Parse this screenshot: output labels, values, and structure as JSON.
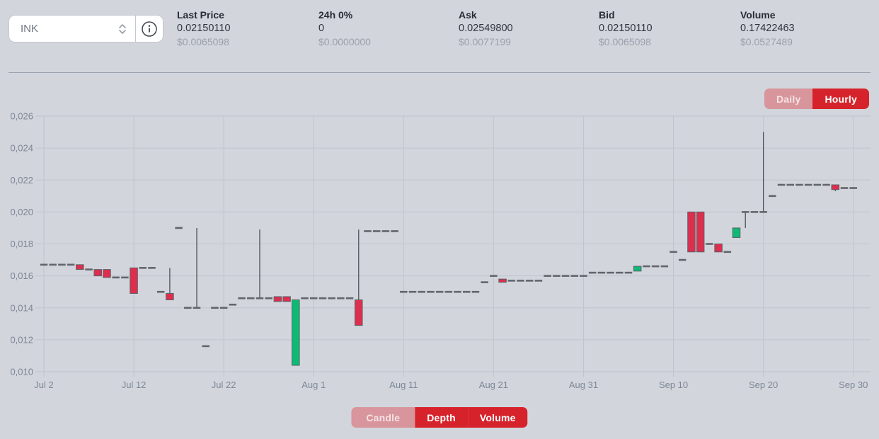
{
  "header": {
    "pair": "INK",
    "pair_select_icon": "chevron-up-down-icon",
    "info_icon": "info-circle-icon",
    "stats": [
      {
        "label": "Last Price",
        "value": "0.02150110",
        "usd": "$0.0065098"
      },
      {
        "label": "24h 0%",
        "value": "0",
        "usd": "$0.0000000"
      },
      {
        "label": "Ask",
        "value": "0.02549800",
        "usd": "$0.0077199"
      },
      {
        "label": "Bid",
        "value": "0.02150110",
        "usd": "$0.0065098"
      },
      {
        "label": "Volume",
        "value": "0.17422463",
        "usd": "$0.0527489"
      }
    ]
  },
  "chart_controls": {
    "interval": [
      {
        "label": "Daily",
        "highlighted": false
      },
      {
        "label": "Hourly",
        "highlighted": true
      }
    ],
    "view": [
      {
        "label": "Candle",
        "highlighted": false
      },
      {
        "label": "Depth",
        "highlighted": true
      },
      {
        "label": "Volume",
        "highlighted": true
      }
    ]
  },
  "chart_data": {
    "type": "candlestick",
    "interval": "daily",
    "y_range": [
      0.01,
      0.026
    ],
    "grid": true,
    "y_ticks": [
      {
        "label": "0,026",
        "value": 0.026
      },
      {
        "label": "0,024",
        "value": 0.024
      },
      {
        "label": "0,022",
        "value": 0.022
      },
      {
        "label": "0,020",
        "value": 0.02
      },
      {
        "label": "0,018",
        "value": 0.018
      },
      {
        "label": "0,016",
        "value": 0.016
      },
      {
        "label": "0,014",
        "value": 0.014
      },
      {
        "label": "0,012",
        "value": 0.012
      },
      {
        "label": "0,010",
        "value": 0.01
      }
    ],
    "x_ticks": [
      {
        "label": "Jul 2",
        "index": 0
      },
      {
        "label": "Jul 12",
        "index": 10
      },
      {
        "label": "Jul 22",
        "index": 20
      },
      {
        "label": "Aug 1",
        "index": 30
      },
      {
        "label": "Aug 11",
        "index": 40
      },
      {
        "label": "Aug 21",
        "index": 50
      },
      {
        "label": "Aug 31",
        "index": 60
      },
      {
        "label": "Sep 10",
        "index": 70
      },
      {
        "label": "Sep 20",
        "index": 80
      },
      {
        "label": "Sep 30",
        "index": 90
      }
    ],
    "colors": {
      "up": "#0dba74",
      "down": "#dd2e4e",
      "body_border": "#5c6168",
      "dash": "#62666c",
      "wick": "#4d525a",
      "grid": "#c0c4cc",
      "axis_text": "#7d8795"
    },
    "candles_format": [
      "open",
      "high",
      "low",
      "close"
    ],
    "candles": [
      [
        0.0167,
        0.0167,
        0.0167,
        0.0167
      ],
      [
        0.0167,
        0.0167,
        0.0167,
        0.0167
      ],
      [
        0.0167,
        0.0167,
        0.0167,
        0.0167
      ],
      [
        0.0167,
        0.0167,
        0.0167,
        0.0167
      ],
      [
        0.0167,
        0.0167,
        0.0164,
        0.0164
      ],
      [
        0.0164,
        0.0164,
        0.0164,
        0.0164
      ],
      [
        0.0164,
        0.0164,
        0.016,
        0.016
      ],
      [
        0.0164,
        0.0164,
        0.0159,
        0.0159
      ],
      [
        0.0159,
        0.0159,
        0.0159,
        0.0159
      ],
      [
        0.0159,
        0.0159,
        0.0159,
        0.0159
      ],
      [
        0.0165,
        0.0165,
        0.0149,
        0.0149
      ],
      [
        0.0165,
        0.0165,
        0.0165,
        0.0165
      ],
      [
        0.0165,
        0.0165,
        0.0165,
        0.0165
      ],
      [
        0.015,
        0.015,
        0.015,
        0.015
      ],
      [
        0.0149,
        0.0165,
        0.0145,
        0.0145
      ],
      [
        0.019,
        0.019,
        0.019,
        0.019
      ],
      [
        0.014,
        0.014,
        0.014,
        0.014
      ],
      [
        0.014,
        0.019,
        0.014,
        0.014
      ],
      [
        0.0116,
        0.0116,
        0.0116,
        0.0116
      ],
      [
        0.014,
        0.014,
        0.014,
        0.014
      ],
      [
        0.014,
        0.014,
        0.014,
        0.014
      ],
      [
        0.0142,
        0.0142,
        0.0142,
        0.0142
      ],
      [
        0.0146,
        0.0146,
        0.0146,
        0.0146
      ],
      [
        0.0146,
        0.0146,
        0.0146,
        0.0146
      ],
      [
        0.0146,
        0.0189,
        0.0146,
        0.0146
      ],
      [
        0.0146,
        0.0146,
        0.0146,
        0.0146
      ],
      [
        0.0147,
        0.0147,
        0.0144,
        0.0144
      ],
      [
        0.0147,
        0.0147,
        0.0144,
        0.0144
      ],
      [
        0.0104,
        0.0145,
        0.0104,
        0.0145
      ],
      [
        0.0146,
        0.0146,
        0.0146,
        0.0146
      ],
      [
        0.0146,
        0.0146,
        0.0146,
        0.0146
      ],
      [
        0.0146,
        0.0146,
        0.0146,
        0.0146
      ],
      [
        0.0146,
        0.0146,
        0.0146,
        0.0146
      ],
      [
        0.0146,
        0.0146,
        0.0146,
        0.0146
      ],
      [
        0.0146,
        0.0146,
        0.0146,
        0.0146
      ],
      [
        0.0145,
        0.0189,
        0.0129,
        0.0129
      ],
      [
        0.0188,
        0.0188,
        0.0188,
        0.0188
      ],
      [
        0.0188,
        0.0188,
        0.0188,
        0.0188
      ],
      [
        0.0188,
        0.0188,
        0.0188,
        0.0188
      ],
      [
        0.0188,
        0.0188,
        0.0188,
        0.0188
      ],
      [
        0.015,
        0.015,
        0.015,
        0.015
      ],
      [
        0.015,
        0.015,
        0.015,
        0.015
      ],
      [
        0.015,
        0.015,
        0.015,
        0.015
      ],
      [
        0.015,
        0.015,
        0.015,
        0.015
      ],
      [
        0.015,
        0.015,
        0.015,
        0.015
      ],
      [
        0.015,
        0.015,
        0.015,
        0.015
      ],
      [
        0.015,
        0.015,
        0.015,
        0.015
      ],
      [
        0.015,
        0.015,
        0.015,
        0.015
      ],
      [
        0.015,
        0.015,
        0.015,
        0.015
      ],
      [
        0.0156,
        0.0156,
        0.0156,
        0.0156
      ],
      [
        0.016,
        0.016,
        0.016,
        0.016
      ],
      [
        0.0158,
        0.0158,
        0.0156,
        0.0156
      ],
      [
        0.0157,
        0.0157,
        0.0157,
        0.0157
      ],
      [
        0.0157,
        0.0157,
        0.0157,
        0.0157
      ],
      [
        0.0157,
        0.0157,
        0.0157,
        0.0157
      ],
      [
        0.0157,
        0.0157,
        0.0157,
        0.0157
      ],
      [
        0.016,
        0.016,
        0.016,
        0.016
      ],
      [
        0.016,
        0.016,
        0.016,
        0.016
      ],
      [
        0.016,
        0.016,
        0.016,
        0.016
      ],
      [
        0.016,
        0.016,
        0.016,
        0.016
      ],
      [
        0.016,
        0.016,
        0.016,
        0.016
      ],
      [
        0.0162,
        0.0162,
        0.0162,
        0.0162
      ],
      [
        0.0162,
        0.0162,
        0.0162,
        0.0162
      ],
      [
        0.0162,
        0.0162,
        0.0162,
        0.0162
      ],
      [
        0.0162,
        0.0162,
        0.0162,
        0.0162
      ],
      [
        0.0162,
        0.0162,
        0.0162,
        0.0162
      ],
      [
        0.0163,
        0.0166,
        0.0163,
        0.0166
      ],
      [
        0.0166,
        0.0166,
        0.0166,
        0.0166
      ],
      [
        0.0166,
        0.0166,
        0.0166,
        0.0166
      ],
      [
        0.0166,
        0.0166,
        0.0166,
        0.0166
      ],
      [
        0.0175,
        0.0175,
        0.0175,
        0.0175
      ],
      [
        0.017,
        0.017,
        0.017,
        0.017
      ],
      [
        0.02,
        0.02,
        0.0175,
        0.0175
      ],
      [
        0.02,
        0.02,
        0.0175,
        0.0175
      ],
      [
        0.018,
        0.018,
        0.018,
        0.018
      ],
      [
        0.018,
        0.018,
        0.0175,
        0.0175
      ],
      [
        0.0175,
        0.0175,
        0.0175,
        0.0175
      ],
      [
        0.0184,
        0.019,
        0.0184,
        0.019
      ],
      [
        0.02,
        0.02,
        0.019,
        0.02
      ],
      [
        0.02,
        0.02,
        0.02,
        0.02
      ],
      [
        0.02,
        0.025,
        0.02,
        0.02
      ],
      [
        0.021,
        0.021,
        0.021,
        0.021
      ],
      [
        0.0217,
        0.0217,
        0.0217,
        0.0217
      ],
      [
        0.0217,
        0.0217,
        0.0217,
        0.0217
      ],
      [
        0.0217,
        0.0217,
        0.0217,
        0.0217
      ],
      [
        0.0217,
        0.0217,
        0.0217,
        0.0217
      ],
      [
        0.0217,
        0.0217,
        0.0217,
        0.0217
      ],
      [
        0.0217,
        0.0217,
        0.0217,
        0.0217
      ],
      [
        0.0217,
        0.0217,
        0.0213,
        0.0214
      ],
      [
        0.0215,
        0.0215,
        0.0215,
        0.0215
      ],
      [
        0.0215,
        0.0215,
        0.0215,
        0.0215
      ]
    ]
  }
}
